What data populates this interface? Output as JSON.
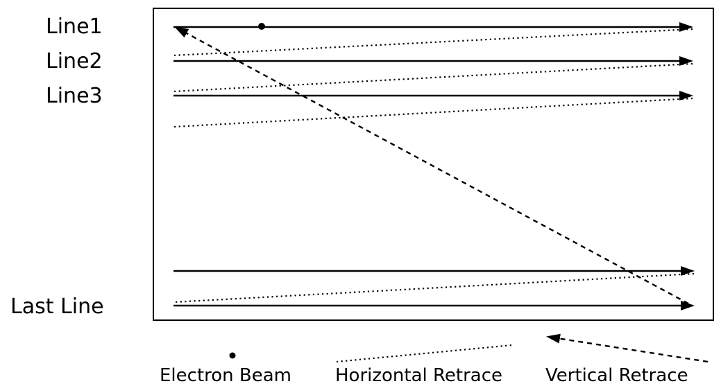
{
  "row_labels": {
    "line1": "Line1",
    "line2": "Line2",
    "line3": "Line3",
    "last_line": "Last Line"
  },
  "legend": {
    "electron_beam": "Electron Beam",
    "horizontal_retrace": "Horizontal Retrace",
    "vertical_retrace": "Vertical Retrace"
  },
  "colors": {
    "ink": "#000000",
    "background": "#ffffff"
  }
}
